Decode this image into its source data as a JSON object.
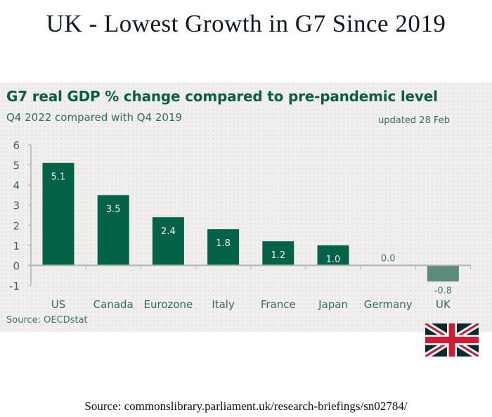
{
  "headline": "UK - Lowest Growth in G7 Since 2019",
  "footer_source": "Source: commonslibrary.parliament.uk/research-briefings/sn02784/",
  "flag": {
    "icon": "union-jack-flag-icon",
    "country": "UK"
  },
  "colors": {
    "bar": "#046248",
    "bar_negative": "#5c8a7b",
    "title": "#0b5e45",
    "axis": "#a9b8b2",
    "panel_bg": "#f0efed",
    "flag_blue": "#0b2a2a",
    "flag_red": "#cf1b33"
  },
  "chart_data": {
    "type": "bar",
    "title": "G7 real GDP % change compared to pre-pandemic level",
    "subtitle": "Q4 2022 compared with Q4 2019",
    "annotation": "updated 28 Feb",
    "source": "Source: OECDstat",
    "xlabel": "",
    "ylabel": "",
    "categories": [
      "US",
      "Canada",
      "Eurozone",
      "Italy",
      "France",
      "Japan",
      "Germany",
      "UK"
    ],
    "values": [
      5.1,
      3.5,
      2.4,
      1.8,
      1.2,
      1.0,
      0.0,
      -0.8
    ],
    "data_labels": [
      "5.1",
      "3.5",
      "2.4",
      "1.8",
      "1.2",
      "1.0",
      "0.0",
      "-0.8"
    ],
    "ylim": [
      -1,
      6
    ],
    "yticks": [
      "-1",
      "0",
      "1",
      "2",
      "3",
      "4",
      "5",
      "6"
    ],
    "grid": false,
    "legend": "none"
  }
}
